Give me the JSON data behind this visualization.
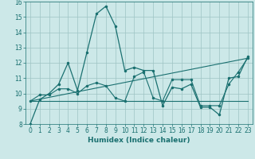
{
  "title": "",
  "xlabel": "Humidex (Indice chaleur)",
  "xlim": [
    -0.5,
    23.5
  ],
  "ylim": [
    8,
    16
  ],
  "yticks": [
    8,
    9,
    10,
    11,
    12,
    13,
    14,
    15,
    16
  ],
  "xticks": [
    0,
    1,
    2,
    3,
    4,
    5,
    6,
    7,
    8,
    9,
    10,
    11,
    12,
    13,
    14,
    15,
    16,
    17,
    18,
    19,
    20,
    21,
    22,
    23
  ],
  "bg_color": "#cce8e8",
  "line_color": "#1a7070",
  "grid_color": "#9ec4c4",
  "series1_x": [
    0,
    1,
    2,
    3,
    4,
    5,
    6,
    7,
    8,
    9,
    10,
    11,
    12,
    13,
    14,
    15,
    16,
    17,
    18,
    19,
    20,
    21,
    22,
    23
  ],
  "series1_y": [
    8.0,
    9.6,
    10.0,
    10.6,
    12.0,
    10.2,
    12.7,
    15.2,
    15.7,
    14.4,
    11.5,
    11.7,
    11.5,
    11.5,
    9.2,
    10.4,
    10.3,
    10.6,
    9.1,
    9.1,
    8.6,
    11.0,
    11.1,
    12.4
  ],
  "series2_x": [
    0,
    1,
    2,
    3,
    4,
    5,
    6,
    7,
    8,
    9,
    10,
    11,
    12,
    13,
    14,
    15,
    16,
    17,
    18,
    19,
    20,
    21,
    22,
    23
  ],
  "series2_y": [
    9.5,
    9.9,
    9.9,
    10.3,
    10.3,
    10.0,
    10.5,
    10.7,
    10.5,
    9.7,
    9.5,
    11.1,
    11.4,
    9.7,
    9.5,
    10.9,
    10.9,
    10.9,
    9.2,
    9.2,
    9.2,
    10.6,
    11.4,
    12.3
  ],
  "series3_x": [
    0,
    23
  ],
  "series3_y": [
    9.5,
    12.3
  ],
  "series4_x": [
    0,
    23
  ],
  "series4_y": [
    9.5,
    9.5
  ]
}
